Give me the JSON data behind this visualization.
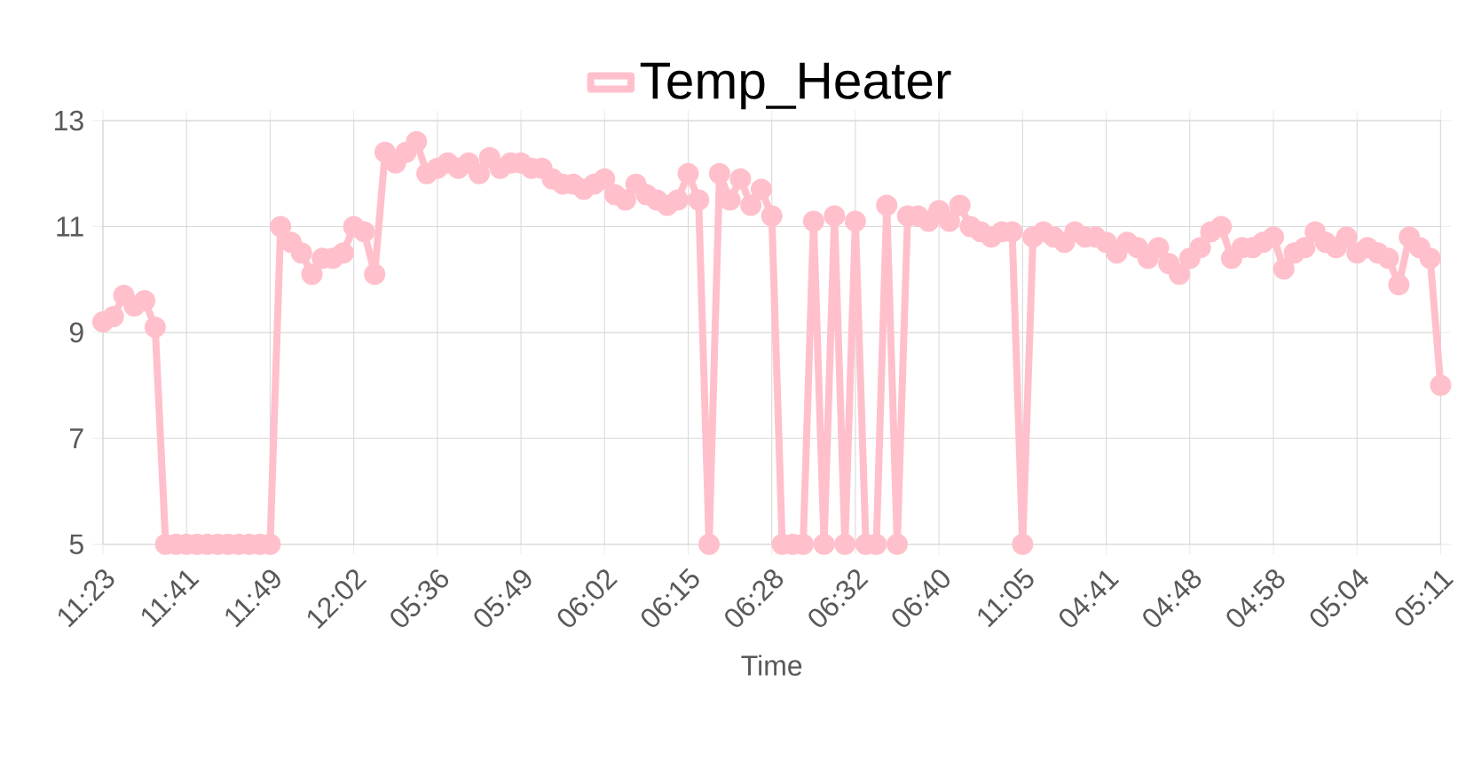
{
  "chart_data": {
    "type": "line",
    "xlabel": "Time",
    "legend": "top",
    "grid": true,
    "marker": "circle",
    "line_style": "solid",
    "categories": [
      "11:23",
      null,
      null,
      null,
      null,
      null,
      null,
      null,
      "11:41",
      null,
      null,
      null,
      null,
      null,
      null,
      null,
      "11:49",
      null,
      null,
      null,
      null,
      null,
      null,
      null,
      "12:02",
      null,
      null,
      null,
      null,
      null,
      null,
      null,
      "05:36",
      null,
      null,
      null,
      null,
      null,
      null,
      null,
      "05:49",
      null,
      null,
      null,
      null,
      null,
      null,
      null,
      "06:02",
      null,
      null,
      null,
      null,
      null,
      null,
      null,
      "06:15",
      null,
      null,
      null,
      null,
      null,
      null,
      null,
      "06:28",
      null,
      null,
      null,
      null,
      null,
      null,
      null,
      "06:32",
      null,
      null,
      null,
      null,
      null,
      null,
      null,
      "06:40",
      null,
      null,
      null,
      null,
      null,
      null,
      null,
      "11:05",
      null,
      null,
      null,
      null,
      null,
      null,
      null,
      "04:41",
      null,
      null,
      null,
      null,
      null,
      null,
      null,
      "04:48",
      null,
      null,
      null,
      null,
      null,
      null,
      null,
      "04:58",
      null,
      null,
      null,
      null,
      null,
      null,
      null,
      "05:04",
      null,
      null,
      null,
      null,
      null,
      null,
      null,
      "05:11"
    ],
    "ylim": [
      5,
      13
    ],
    "yticks": [
      5,
      7,
      9,
      11,
      13
    ],
    "series": [
      {
        "name": "Temp_Heater",
        "color": "#ffc0cb",
        "values": [
          9.2,
          9.3,
          9.7,
          9.5,
          9.6,
          9.1,
          5,
          5,
          5,
          5,
          5,
          5,
          5,
          5,
          5,
          5,
          5,
          11.0,
          10.7,
          10.5,
          10.1,
          10.4,
          10.4,
          10.5,
          11.0,
          10.9,
          10.1,
          12.4,
          12.2,
          12.4,
          12.6,
          12.0,
          12.1,
          12.2,
          12.1,
          12.2,
          12.0,
          12.3,
          12.1,
          12.2,
          12.2,
          12.1,
          12.1,
          11.9,
          11.8,
          11.8,
          11.7,
          11.8,
          11.9,
          11.6,
          11.5,
          11.8,
          11.6,
          11.5,
          11.4,
          11.5,
          12.0,
          11.5,
          5,
          12.0,
          11.5,
          11.9,
          11.4,
          11.7,
          11.2,
          5,
          5,
          5,
          11.1,
          5,
          11.2,
          5,
          11.1,
          5,
          5,
          11.4,
          5,
          11.2,
          11.2,
          11.1,
          11.3,
          11.1,
          11.4,
          11.0,
          10.9,
          10.8,
          10.9,
          10.9,
          5,
          10.8,
          10.9,
          10.8,
          10.7,
          10.9,
          10.8,
          10.8,
          10.7,
          10.5,
          10.7,
          10.6,
          10.4,
          10.6,
          10.3,
          10.1,
          10.4,
          10.6,
          10.9,
          11.0,
          10.4,
          10.6,
          10.6,
          10.7,
          10.8,
          10.2,
          10.5,
          10.6,
          10.9,
          10.7,
          10.6,
          10.8,
          10.5,
          10.6,
          10.5,
          10.4,
          9.9,
          10.8,
          10.6,
          10.4,
          8.0
        ]
      }
    ]
  }
}
